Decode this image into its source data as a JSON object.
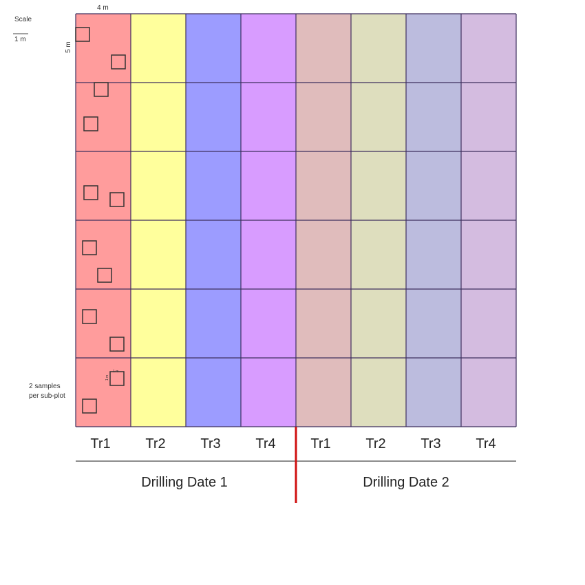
{
  "scale": {
    "label": "Scale",
    "unit_label": "1 m"
  },
  "plot": {
    "width_label": "4 m",
    "height_label": "5 m",
    "sample_width_label": "1 m",
    "sample_height_label": "1 m",
    "samples_note_line1": "2 samples",
    "samples_note_line2": "per sub-plot",
    "rows": 6
  },
  "columns": [
    {
      "label": "Tr1",
      "color": "#ff9c9c"
    },
    {
      "label": "Tr2",
      "color": "#ffff9c"
    },
    {
      "label": "Tr3",
      "color": "#9c9cff"
    },
    {
      "label": "Tr4",
      "color": "#d89cff"
    },
    {
      "label": "Tr1",
      "color": "#e0bcbc"
    },
    {
      "label": "Tr2",
      "color": "#dedebe"
    },
    {
      "label": "Tr3",
      "color": "#bcbcde"
    },
    {
      "label": "Tr4",
      "color": "#d4bce0"
    }
  ],
  "dates": [
    "Drilling Date 1",
    "Drilling Date 2"
  ],
  "colors": {
    "grid_line": "#3e2f5e",
    "divider": "#d01010",
    "axis_line": "#666666"
  }
}
